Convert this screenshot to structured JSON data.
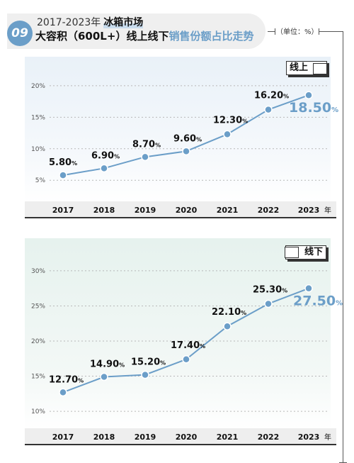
{
  "header": {
    "badge": "09",
    "years": "2017-2023年",
    "market": "冰箱市场",
    "title_main": "大容积（600L+）线上线下",
    "title_accent": "销售份额占比走势",
    "unit": "（单位：%）"
  },
  "colors": {
    "accent": "#6b9ec8",
    "line": "#6b9ec8",
    "point": "#6b9ec8"
  },
  "chart_data": [
    {
      "type": "line",
      "panel_label": "线上",
      "categories": [
        "2017",
        "2018",
        "2019",
        "2020",
        "2021",
        "2022",
        "2023"
      ],
      "x_unit": "年",
      "values": [
        5.8,
        6.9,
        8.7,
        9.6,
        12.3,
        16.2,
        18.5
      ],
      "value_labels": [
        "5.80",
        "6.90",
        "8.70",
        "9.60",
        "12.30",
        "16.20",
        "18.50"
      ],
      "ylim": [
        3,
        21
      ],
      "yticks": [
        5,
        10,
        15,
        20
      ],
      "grid": true
    },
    {
      "type": "line",
      "panel_label": "线下",
      "categories": [
        "2017",
        "2018",
        "2019",
        "2020",
        "2021",
        "2022",
        "2023"
      ],
      "x_unit": "年",
      "values": [
        12.7,
        14.9,
        15.2,
        17.4,
        22.1,
        25.3,
        27.5
      ],
      "value_labels": [
        "12.70",
        "14.90",
        "15.20",
        "17.40",
        "22.10",
        "25.30",
        "27.50"
      ],
      "ylim": [
        8.8,
        31
      ],
      "yticks": [
        10,
        15,
        20,
        25,
        30
      ],
      "grid": true
    }
  ]
}
